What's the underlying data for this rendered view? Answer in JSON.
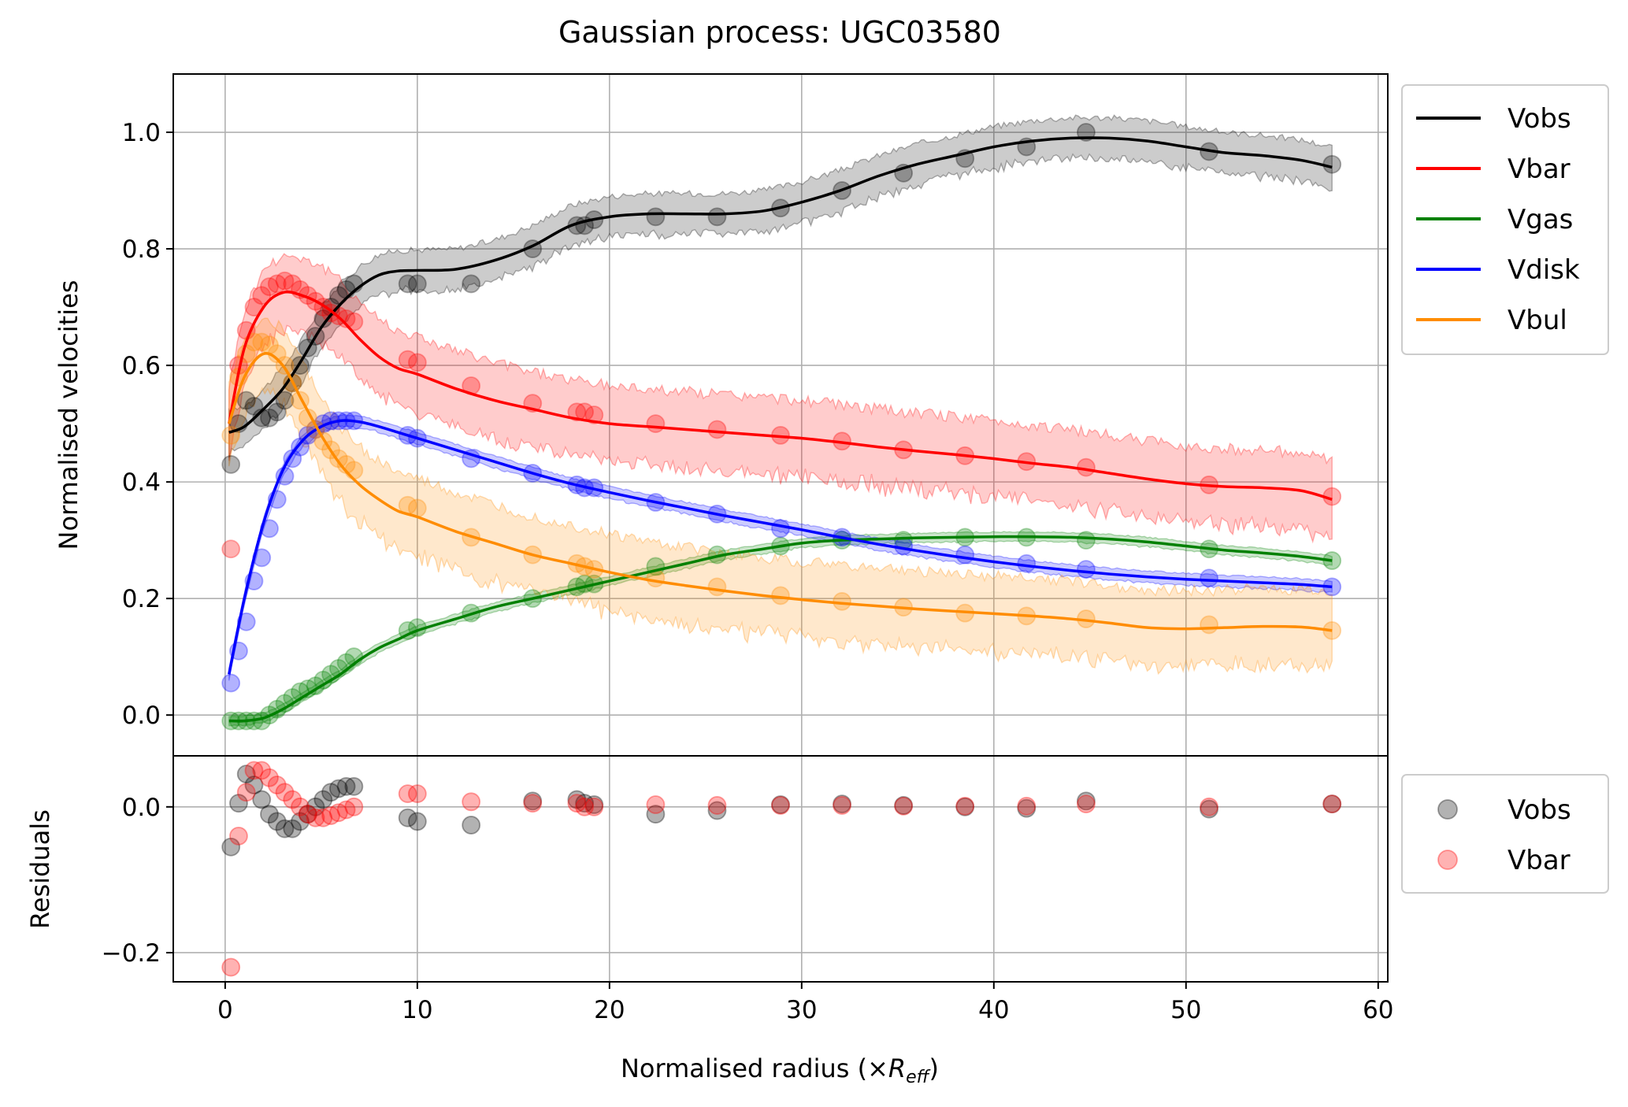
{
  "chart_data": {
    "type": "line",
    "title": "Gaussian process: UGC03580",
    "xlabel_main": "Normalised radius (×",
    "xlabel_symbol": "R",
    "xlabel_subscript": "eff",
    "xlabel_close": ")",
    "top_panel": {
      "ylabel": "Normalised velocities",
      "ylim": [
        -0.07,
        1.1
      ],
      "yticks": [
        0.0,
        0.2,
        0.4,
        0.6,
        0.8,
        1.0
      ],
      "ytick_labels": [
        "0.0",
        "0.2",
        "0.4",
        "0.6",
        "0.8",
        "1.0"
      ],
      "grid": true,
      "legend": "outside upper right",
      "series": [
        {
          "name": "Vobs",
          "color": "#000000",
          "points_x": [
            0.3,
            0.7,
            1.1,
            1.5,
            1.9,
            2.3,
            2.7,
            3.1,
            3.5,
            3.9,
            4.3,
            4.7,
            5.1,
            5.5,
            5.9,
            6.3,
            6.7,
            9.5,
            10.0,
            12.8,
            16.0,
            18.3,
            18.7,
            19.2,
            22.4,
            25.6,
            28.9,
            32.1,
            35.3,
            38.5,
            41.7,
            44.8,
            51.2,
            57.6
          ],
          "points_y": [
            0.43,
            0.5,
            0.54,
            0.53,
            0.51,
            0.51,
            0.52,
            0.54,
            0.57,
            0.6,
            0.63,
            0.65,
            0.68,
            0.7,
            0.72,
            0.73,
            0.74,
            0.74,
            0.74,
            0.74,
            0.8,
            0.84,
            0.84,
            0.85,
            0.855,
            0.855,
            0.87,
            0.9,
            0.93,
            0.955,
            0.975,
            1.0,
            0.967,
            0.945
          ],
          "fit_x": [
            0.2,
            1,
            2,
            3,
            4,
            5,
            6,
            7,
            8,
            9,
            10,
            12,
            14,
            16,
            18,
            20,
            22,
            24,
            26,
            28,
            30,
            32,
            34,
            36,
            38,
            40,
            42,
            44,
            46,
            48,
            50,
            52,
            54,
            56,
            57.6
          ],
          "fit_y": [
            0.485,
            0.495,
            0.525,
            0.56,
            0.61,
            0.665,
            0.705,
            0.735,
            0.755,
            0.762,
            0.763,
            0.765,
            0.78,
            0.805,
            0.84,
            0.855,
            0.86,
            0.86,
            0.86,
            0.865,
            0.88,
            0.9,
            0.925,
            0.945,
            0.96,
            0.975,
            0.985,
            0.99,
            0.99,
            0.985,
            0.975,
            0.965,
            0.96,
            0.952,
            0.94
          ],
          "band_halfwidth": 0.035
        },
        {
          "name": "Vbar",
          "color": "#ff0000",
          "points_x": [
            0.3,
            0.7,
            1.1,
            1.5,
            1.9,
            2.3,
            2.7,
            3.1,
            3.5,
            3.9,
            4.3,
            4.7,
            5.1,
            5.5,
            5.9,
            6.3,
            6.7,
            9.5,
            10.0,
            12.8,
            16.0,
            18.3,
            18.7,
            19.2,
            22.4,
            25.6,
            28.9,
            32.1,
            35.3,
            38.5,
            41.7,
            44.8,
            51.2,
            57.6
          ],
          "points_y": [
            0.285,
            0.6,
            0.66,
            0.7,
            0.72,
            0.735,
            0.74,
            0.745,
            0.74,
            0.73,
            0.72,
            0.71,
            0.7,
            0.69,
            0.685,
            0.68,
            0.675,
            0.61,
            0.605,
            0.565,
            0.535,
            0.52,
            0.52,
            0.515,
            0.5,
            0.49,
            0.48,
            0.47,
            0.455,
            0.445,
            0.435,
            0.425,
            0.395,
            0.375
          ],
          "fit_x": [
            0.2,
            1,
            2,
            3,
            4,
            5,
            6,
            7,
            8,
            9,
            10,
            12,
            14,
            16,
            18,
            20,
            22,
            24,
            26,
            28,
            30,
            32,
            34,
            36,
            38,
            40,
            42,
            44,
            46,
            48,
            50,
            52,
            54,
            56,
            57.6
          ],
          "fit_y": [
            0.5,
            0.63,
            0.7,
            0.725,
            0.72,
            0.705,
            0.68,
            0.645,
            0.615,
            0.595,
            0.585,
            0.56,
            0.54,
            0.525,
            0.51,
            0.5,
            0.495,
            0.49,
            0.485,
            0.48,
            0.475,
            0.468,
            0.46,
            0.453,
            0.447,
            0.44,
            0.432,
            0.425,
            0.415,
            0.405,
            0.397,
            0.392,
            0.39,
            0.385,
            0.37
          ],
          "band_halfwidth": 0.065
        },
        {
          "name": "Vgas",
          "color": "#008000",
          "points_x": [
            0.3,
            0.7,
            1.1,
            1.5,
            1.9,
            2.3,
            2.7,
            3.1,
            3.5,
            3.9,
            4.3,
            4.7,
            5.1,
            5.5,
            5.9,
            6.3,
            6.7,
            9.5,
            10.0,
            12.8,
            16.0,
            18.3,
            18.7,
            19.2,
            22.4,
            25.6,
            28.9,
            32.1,
            35.3,
            38.5,
            41.7,
            44.8,
            51.2,
            57.6
          ],
          "points_y": [
            -0.01,
            -0.01,
            -0.01,
            -0.01,
            -0.01,
            0.0,
            0.01,
            0.02,
            0.03,
            0.04,
            0.045,
            0.05,
            0.06,
            0.07,
            0.08,
            0.09,
            0.1,
            0.145,
            0.15,
            0.175,
            0.2,
            0.22,
            0.225,
            0.225,
            0.255,
            0.275,
            0.29,
            0.3,
            0.3,
            0.305,
            0.305,
            0.3,
            0.285,
            0.265
          ],
          "fit_x": [
            0.2,
            1,
            2,
            3,
            4,
            5,
            6,
            7,
            8,
            9,
            10,
            12,
            14,
            16,
            18,
            20,
            22,
            24,
            26,
            28,
            30,
            32,
            34,
            36,
            38,
            40,
            42,
            44,
            46,
            48,
            50,
            52,
            54,
            56,
            57.6
          ],
          "fit_y": [
            -0.01,
            -0.01,
            -0.005,
            0.01,
            0.03,
            0.05,
            0.07,
            0.095,
            0.115,
            0.13,
            0.145,
            0.165,
            0.185,
            0.2,
            0.215,
            0.23,
            0.245,
            0.26,
            0.275,
            0.285,
            0.295,
            0.3,
            0.302,
            0.304,
            0.305,
            0.306,
            0.306,
            0.305,
            0.302,
            0.297,
            0.29,
            0.283,
            0.278,
            0.272,
            0.265
          ],
          "band_halfwidth": 0.008
        },
        {
          "name": "Vdisk",
          "color": "#0000ff",
          "points_x": [
            0.3,
            0.7,
            1.1,
            1.5,
            1.9,
            2.3,
            2.7,
            3.1,
            3.5,
            3.9,
            4.3,
            4.7,
            5.1,
            5.5,
            5.9,
            6.3,
            6.7,
            9.5,
            10.0,
            12.8,
            16.0,
            18.3,
            18.7,
            19.2,
            22.4,
            25.6,
            28.9,
            32.1,
            35.3,
            38.5,
            41.7,
            44.8,
            51.2,
            57.6
          ],
          "points_y": [
            0.055,
            0.11,
            0.16,
            0.23,
            0.27,
            0.32,
            0.37,
            0.41,
            0.44,
            0.46,
            0.48,
            0.49,
            0.5,
            0.505,
            0.505,
            0.505,
            0.505,
            0.48,
            0.475,
            0.44,
            0.415,
            0.395,
            0.39,
            0.39,
            0.365,
            0.345,
            0.32,
            0.305,
            0.29,
            0.275,
            0.26,
            0.25,
            0.235,
            0.22
          ],
          "fit_x": [
            0.2,
            1,
            2,
            3,
            4,
            5,
            6,
            7,
            8,
            9,
            10,
            12,
            14,
            16,
            18,
            20,
            22,
            24,
            26,
            28,
            30,
            32,
            34,
            36,
            38,
            40,
            42,
            44,
            46,
            48,
            50,
            52,
            54,
            56,
            57.6
          ],
          "fit_y": [
            0.07,
            0.2,
            0.33,
            0.42,
            0.47,
            0.495,
            0.505,
            0.503,
            0.495,
            0.485,
            0.475,
            0.455,
            0.435,
            0.415,
            0.397,
            0.382,
            0.368,
            0.355,
            0.342,
            0.33,
            0.318,
            0.305,
            0.293,
            0.282,
            0.272,
            0.263,
            0.255,
            0.248,
            0.242,
            0.237,
            0.233,
            0.23,
            0.227,
            0.224,
            0.22
          ],
          "band_halfwidth": 0.01
        },
        {
          "name": "Vbul",
          "color": "#ff8c00",
          "points_x": [
            0.3,
            0.7,
            1.1,
            1.5,
            1.9,
            2.3,
            2.7,
            3.1,
            3.5,
            3.9,
            4.3,
            4.7,
            5.1,
            5.5,
            5.9,
            6.3,
            6.7,
            9.5,
            10.0,
            12.8,
            16.0,
            18.3,
            18.7,
            19.2,
            22.4,
            25.6,
            28.9,
            32.1,
            35.3,
            38.5,
            41.7,
            44.8,
            51.2,
            57.6
          ],
          "points_y": [
            0.48,
            0.58,
            0.62,
            0.64,
            0.64,
            0.635,
            0.62,
            0.6,
            0.57,
            0.54,
            0.51,
            0.49,
            0.47,
            0.455,
            0.44,
            0.43,
            0.42,
            0.36,
            0.355,
            0.305,
            0.275,
            0.26,
            0.255,
            0.25,
            0.235,
            0.22,
            0.205,
            0.195,
            0.185,
            0.175,
            0.17,
            0.165,
            0.155,
            0.145
          ],
          "fit_x": [
            0.2,
            1,
            2,
            3,
            4,
            5,
            6,
            7,
            8,
            9,
            10,
            12,
            14,
            16,
            18,
            20,
            22,
            24,
            26,
            28,
            30,
            32,
            34,
            36,
            38,
            40,
            42,
            44,
            46,
            48,
            50,
            52,
            54,
            56,
            57.6
          ],
          "fit_y": [
            0.5,
            0.58,
            0.62,
            0.6,
            0.54,
            0.48,
            0.43,
            0.395,
            0.37,
            0.35,
            0.34,
            0.315,
            0.295,
            0.275,
            0.26,
            0.245,
            0.232,
            0.222,
            0.213,
            0.205,
            0.198,
            0.192,
            0.187,
            0.182,
            0.178,
            0.174,
            0.17,
            0.165,
            0.158,
            0.15,
            0.148,
            0.15,
            0.152,
            0.151,
            0.145
          ],
          "band_halfwidth": 0.065
        }
      ]
    },
    "bottom_panel": {
      "ylabel": "Residuals",
      "ylim": [
        -0.24,
        0.07
      ],
      "yticks": [
        0.0,
        -0.2
      ],
      "ytick_labels": [
        "0.0",
        "−0.2"
      ],
      "grid": true,
      "legend": "outside upper right",
      "series": [
        {
          "name": "Vobs",
          "color": "#000000",
          "x": [
            0.3,
            0.7,
            1.1,
            1.5,
            1.9,
            2.3,
            2.7,
            3.1,
            3.5,
            3.9,
            4.3,
            4.7,
            5.1,
            5.5,
            5.9,
            6.3,
            6.7,
            9.5,
            10.0,
            12.8,
            16.0,
            18.3,
            18.7,
            19.2,
            22.4,
            25.6,
            28.9,
            32.1,
            35.3,
            38.5,
            41.7,
            44.8,
            51.2,
            57.6
          ],
          "y": [
            -0.055,
            0.005,
            0.045,
            0.03,
            0.01,
            -0.01,
            -0.02,
            -0.03,
            -0.03,
            -0.02,
            -0.01,
            0.0,
            0.01,
            0.02,
            0.025,
            0.028,
            0.028,
            -0.015,
            -0.02,
            -0.025,
            0.008,
            0.01,
            0.005,
            0.003,
            -0.01,
            -0.005,
            0.003,
            0.004,
            0.002,
            0.0,
            -0.002,
            0.008,
            -0.003,
            0.004
          ]
        },
        {
          "name": "Vbar",
          "color": "#ff0000",
          "x": [
            0.3,
            0.7,
            1.1,
            1.5,
            1.9,
            2.3,
            2.7,
            3.1,
            3.5,
            3.9,
            4.3,
            4.7,
            5.1,
            5.5,
            5.9,
            6.3,
            6.7,
            9.5,
            10.0,
            12.8,
            16.0,
            18.3,
            18.7,
            19.2,
            22.4,
            25.6,
            28.9,
            32.1,
            35.3,
            38.5,
            41.7,
            44.8,
            51.2,
            57.6
          ],
          "y": [
            -0.22,
            -0.04,
            0.02,
            0.05,
            0.05,
            0.04,
            0.03,
            0.02,
            0.01,
            0.0,
            -0.01,
            -0.015,
            -0.015,
            -0.012,
            -0.008,
            -0.004,
            0.0,
            0.018,
            0.018,
            0.007,
            0.005,
            0.005,
            0.0,
            0.0,
            0.003,
            0.002,
            0.002,
            0.002,
            0.001,
            0.001,
            0.001,
            0.004,
            0.0,
            0.004
          ]
        }
      ]
    },
    "xlim": [
      -2.7,
      60.5
    ],
    "xticks": [
      0,
      10,
      20,
      30,
      40,
      50,
      60
    ],
    "xtick_labels": [
      "0",
      "10",
      "20",
      "30",
      "40",
      "50",
      "60"
    ]
  }
}
